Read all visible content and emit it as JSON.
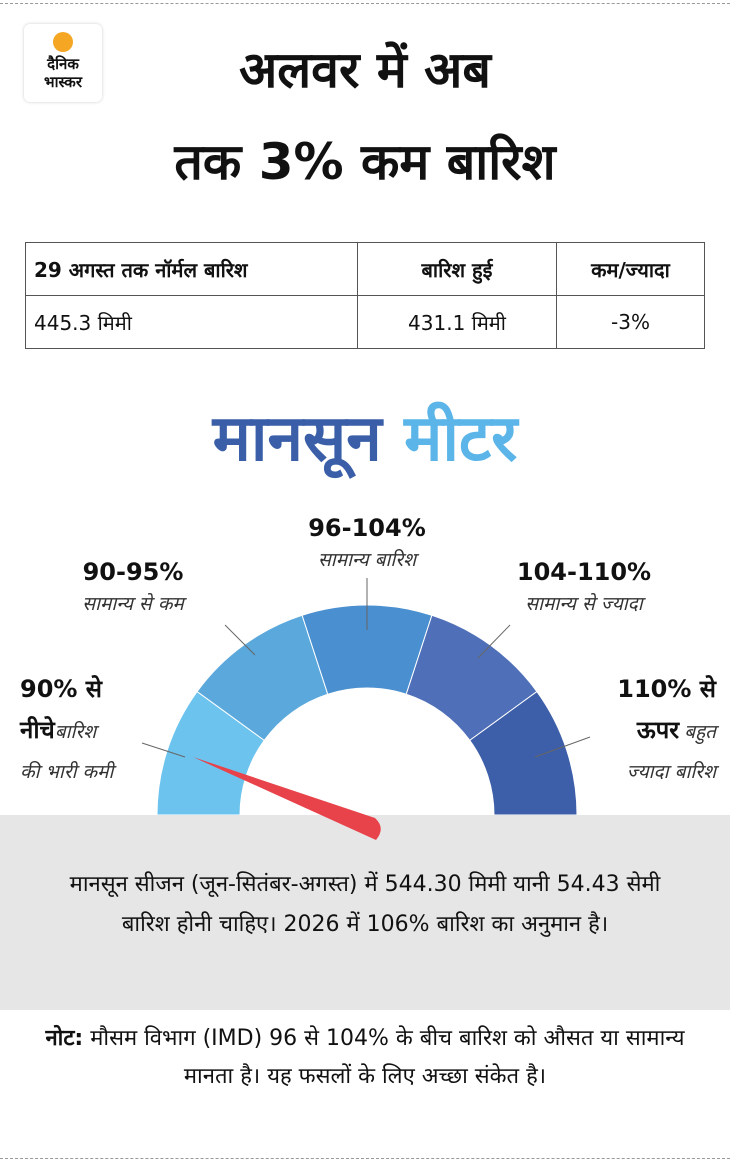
{
  "logo": {
    "line1": "दैनिक",
    "line2": "भास्कर"
  },
  "title": {
    "line1": "अलवर में अब",
    "line2": "तक 3% कम बारिश"
  },
  "table": {
    "header": [
      "29 अगस्त तक नॉर्मल बारिश",
      "बारिश हुई",
      "कम/ज्यादा"
    ],
    "rows": [
      [
        "445.3 मिमी",
        "431.1 मिमी",
        "-3%"
      ]
    ]
  },
  "meter": {
    "title_part1": "मानसून",
    "title_part2": "मीटर",
    "segments": [
      {
        "range_line1": "90% से",
        "range_line2": "नीचे",
        "desc_line1": "बारिश",
        "desc_line2": "की भारी कमी"
      },
      {
        "range": "90-95%",
        "desc": "सामान्य से कम"
      },
      {
        "range": "96-104%",
        "desc": "सामान्य बारिश"
      },
      {
        "range": "104-110%",
        "desc": "सामान्य से ज्यादा"
      },
      {
        "range_line1": "110% से",
        "range_line2": "ऊपर",
        "desc_line1": "बहुत",
        "desc_line2": "ज्यादा बारिश"
      }
    ]
  },
  "summary": "मानसून सीजन (जून-सितंबर-अगस्त) में 544.30 मिमी यानी 54.43 सेमी बारिश होनी चाहिए। 2026 में 106% बारिश का अनुमान है।",
  "note": {
    "label": "नोट:",
    "text": "मौसम विभाग (IMD) 96 से 104% के बीच बारिश को औसत या सामान्य मानता है। यह फसलों के लिए अच्छा संकेत है।"
  }
}
